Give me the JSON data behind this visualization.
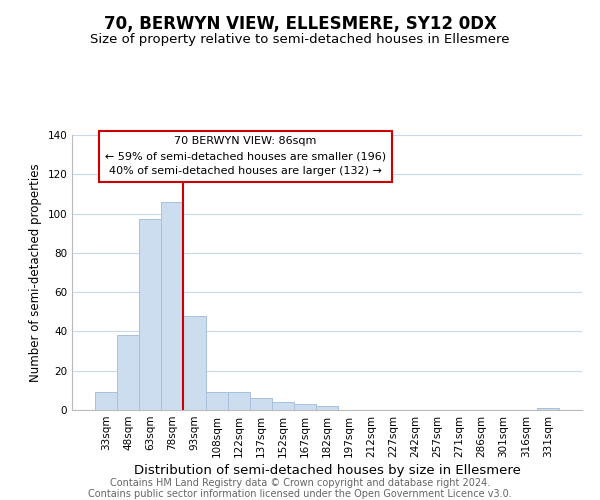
{
  "title": "70, BERWYN VIEW, ELLESMERE, SY12 0DX",
  "subtitle": "Size of property relative to semi-detached houses in Ellesmere",
  "bar_labels": [
    "33sqm",
    "48sqm",
    "63sqm",
    "78sqm",
    "93sqm",
    "108sqm",
    "122sqm",
    "137sqm",
    "152sqm",
    "167sqm",
    "182sqm",
    "197sqm",
    "212sqm",
    "227sqm",
    "242sqm",
    "257sqm",
    "271sqm",
    "286sqm",
    "301sqm",
    "316sqm",
    "331sqm"
  ],
  "bar_values": [
    9,
    38,
    97,
    106,
    48,
    9,
    9,
    6,
    4,
    3,
    2,
    0,
    0,
    0,
    0,
    0,
    0,
    0,
    0,
    0,
    1
  ],
  "bar_color": "#ccddf0",
  "bar_edge_color": "#a8c0dc",
  "vline_color": "#cc0000",
  "ylabel": "Number of semi-detached properties",
  "xlabel": "Distribution of semi-detached houses by size in Ellesmere",
  "ylim": [
    0,
    140
  ],
  "yticks": [
    0,
    20,
    40,
    60,
    80,
    100,
    120,
    140
  ],
  "annotation_title": "70 BERWYN VIEW: 86sqm",
  "annotation_line1": "← 59% of semi-detached houses are smaller (196)",
  "annotation_line2": "40% of semi-detached houses are larger (132) →",
  "footnote1": "Contains HM Land Registry data © Crown copyright and database right 2024.",
  "footnote2": "Contains public sector information licensed under the Open Government Licence v3.0.",
  "title_fontsize": 12,
  "subtitle_fontsize": 9.5,
  "xlabel_fontsize": 9.5,
  "ylabel_fontsize": 8.5,
  "tick_fontsize": 7.5,
  "annotation_fontsize": 8,
  "footnote_fontsize": 7
}
